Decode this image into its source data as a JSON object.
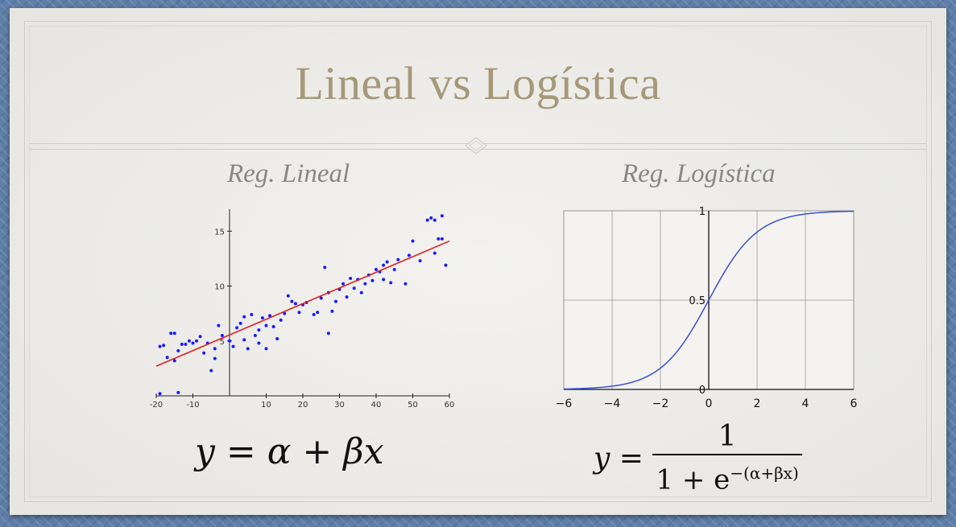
{
  "slide": {
    "title": "Lineal vs Logística",
    "left_subtitle": "Reg. Lineal",
    "right_subtitle": "Reg. Logística",
    "left_formula": {
      "lhs": "y",
      "eq": "=",
      "rhs": "α + βx"
    },
    "right_formula": {
      "lhs": "y",
      "eq": "=",
      "numerator": "1",
      "denominator_base": "1 + e",
      "denominator_exp": "−(α+βx)"
    }
  },
  "colors": {
    "title": "#a6997a",
    "points": "#1a1aff",
    "fit_line": "#e02020",
    "sigmoid": "#3a4fd0"
  },
  "chart_data": [
    {
      "type": "scatter",
      "title": "",
      "xlabel": "",
      "ylabel": "",
      "xlim": [
        -20,
        60
      ],
      "ylim": [
        0,
        17
      ],
      "xticks": [
        "-20",
        "-10",
        "10",
        "20",
        "30",
        "40",
        "50",
        "60"
      ],
      "yticks": [
        "5",
        "10",
        "15"
      ],
      "grid": false,
      "series": [
        {
          "points": [
            [
              -19,
              4.5
            ],
            [
              -18,
              4.6
            ],
            [
              -17,
              3.5
            ],
            [
              -16,
              5.7
            ],
            [
              -15,
              5.7
            ],
            [
              -15,
              3.2
            ],
            [
              -14,
              4.1
            ],
            [
              -13,
              4.7
            ],
            [
              -12,
              4.7
            ],
            [
              -11,
              5.0
            ],
            [
              -10,
              4.8
            ],
            [
              -9,
              5.0
            ],
            [
              -8,
              5.4
            ],
            [
              -7,
              3.9
            ],
            [
              -6,
              4.8
            ],
            [
              -5,
              2.3
            ],
            [
              -4,
              3.4
            ],
            [
              -4,
              4.3
            ],
            [
              -3,
              6.4
            ],
            [
              -2,
              5.5
            ],
            [
              0,
              5.0
            ],
            [
              1,
              4.5
            ],
            [
              2,
              6.2
            ],
            [
              3,
              6.6
            ],
            [
              4,
              5.1
            ],
            [
              4,
              7.2
            ],
            [
              5,
              4.3
            ],
            [
              6,
              7.4
            ],
            [
              7,
              5.5
            ],
            [
              8,
              4.8
            ],
            [
              8,
              6.0
            ],
            [
              9,
              7.1
            ],
            [
              10,
              6.4
            ],
            [
              10,
              4.3
            ],
            [
              11,
              7.3
            ],
            [
              12,
              6.3
            ],
            [
              13,
              5.2
            ],
            [
              14,
              6.9
            ],
            [
              15,
              7.5
            ],
            [
              16,
              9.1
            ],
            [
              17,
              8.6
            ],
            [
              18,
              8.4
            ],
            [
              19,
              7.6
            ],
            [
              20,
              8.3
            ],
            [
              21,
              8.5
            ],
            [
              23,
              7.4
            ],
            [
              24,
              7.6
            ],
            [
              25,
              8.9
            ],
            [
              26,
              11.7
            ],
            [
              27,
              9.4
            ],
            [
              27,
              5.7
            ],
            [
              28,
              7.7
            ],
            [
              29,
              8.6
            ],
            [
              30,
              9.7
            ],
            [
              31,
              10.2
            ],
            [
              32,
              9.0
            ],
            [
              33,
              10.7
            ],
            [
              34,
              9.8
            ],
            [
              35,
              10.6
            ],
            [
              36,
              9.4
            ],
            [
              37,
              10.2
            ],
            [
              38,
              11.0
            ],
            [
              39,
              10.5
            ],
            [
              40,
              11.5
            ],
            [
              41,
              11.3
            ],
            [
              42,
              11.9
            ],
            [
              42,
              10.6
            ],
            [
              43,
              12.2
            ],
            [
              44,
              10.3
            ],
            [
              45,
              11.5
            ],
            [
              46,
              12.4
            ],
            [
              48,
              10.2
            ],
            [
              49,
              12.8
            ],
            [
              50,
              14.1
            ],
            [
              52,
              12.3
            ],
            [
              54,
              16.0
            ],
            [
              55,
              16.2
            ],
            [
              56,
              16.0
            ],
            [
              56,
              13.0
            ],
            [
              57,
              14.3
            ],
            [
              58,
              16.4
            ],
            [
              58,
              14.3
            ],
            [
              59,
              11.9
            ],
            [
              -19,
              0.2
            ],
            [
              -14,
              0.3
            ]
          ]
        },
        {
          "line": [
            [
              -20,
              2.7
            ],
            [
              60,
              14.1
            ]
          ]
        }
      ]
    },
    {
      "type": "line",
      "title": "",
      "xlabel": "",
      "ylabel": "",
      "xlim": [
        -6,
        6
      ],
      "ylim": [
        0,
        1
      ],
      "xticks": [
        "−6",
        "−4",
        "−2",
        "0",
        "2",
        "4",
        "6"
      ],
      "yticks": [
        "0",
        "0.5",
        "1"
      ],
      "grid": true,
      "series": [
        {
          "function": "1/(1+exp(-x))"
        }
      ]
    }
  ]
}
